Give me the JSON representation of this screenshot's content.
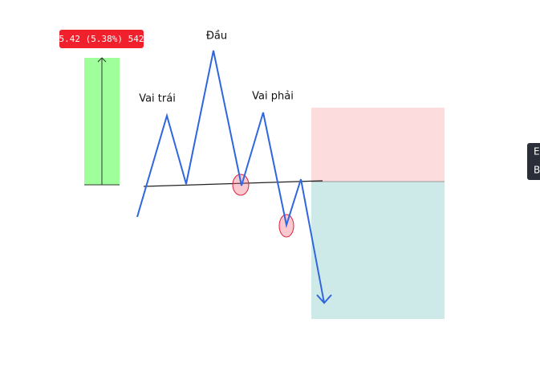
{
  "measure_label": "5.42 (5.38%) 542",
  "labels": {
    "head": "Đầu",
    "left_shoulder": "Vai trái",
    "right_shoulder": "Vai phải"
  },
  "side_panel": {
    "line1": "E",
    "line2": "B"
  }
}
